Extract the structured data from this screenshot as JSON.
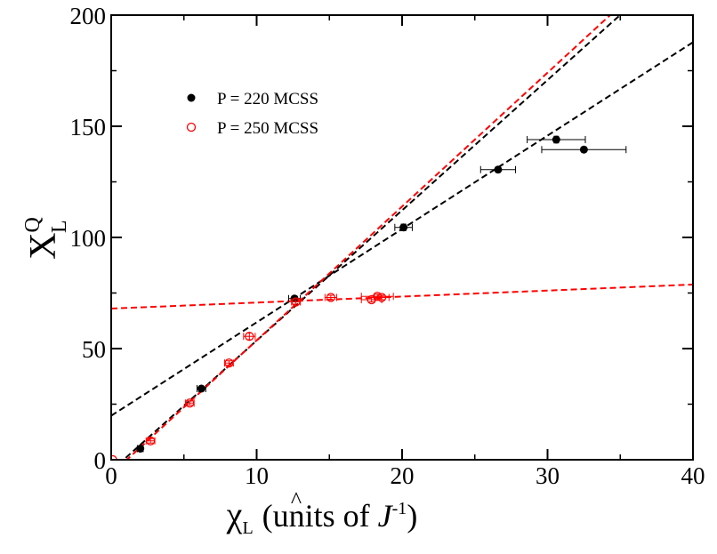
{
  "chart_data": {
    "type": "scatter",
    "xlim": [
      0,
      40
    ],
    "ylim": [
      0,
      200
    ],
    "x_ticks": [
      "0",
      "10",
      "20",
      "30",
      "40"
    ],
    "y_ticks": [
      "0",
      "50",
      "100",
      "150",
      "200"
    ],
    "x_tick_values": [
      0,
      10,
      20,
      30,
      40
    ],
    "y_tick_values": [
      0,
      50,
      100,
      150,
      200
    ],
    "xlabel": {
      "symbol": "χ",
      "hat": "^",
      "subscript": "L",
      "text": "(units of ",
      "unit": "J",
      "superscript": "-1",
      "close": ")"
    },
    "ylabel": {
      "symbol": "X",
      "superscript": "Q",
      "subscript": "L"
    },
    "legend": {
      "position": "top-left",
      "entries": [
        {
          "label": "P = 220 MCSS",
          "marker": "filled-circle",
          "color": "#000000"
        },
        {
          "label": "P = 250 MCSS",
          "marker": "open-circle",
          "color": "#ff0000"
        }
      ]
    },
    "series": [
      {
        "name": "P = 220 MCSS",
        "color": "#000000",
        "marker": "filled",
        "points": [
          {
            "x": 2.0,
            "y": 5.0,
            "xerr": 0.2,
            "yerr": 1.0
          },
          {
            "x": 6.2,
            "y": 32.0,
            "xerr": 0.3,
            "yerr": 1.0
          },
          {
            "x": 12.6,
            "y": 72.5,
            "xerr": 0.4,
            "yerr": 1.0
          },
          {
            "x": 20.1,
            "y": 104.5,
            "xerr": 0.6,
            "yerr": 1.5
          },
          {
            "x": 26.6,
            "y": 130.5,
            "xerr": 1.2,
            "yerr": 1.2
          },
          {
            "x": 30.6,
            "y": 144.0,
            "xerr": 2.0,
            "yerr": 1.5
          },
          {
            "x": 32.5,
            "y": 139.5,
            "xerr": 2.9,
            "yerr": 1.2
          }
        ],
        "fits": [
          {
            "x0": 0,
            "x1": 40,
            "slope": 4.2,
            "intercept": 19.8
          },
          {
            "x0": 0,
            "x1": 40,
            "slope": 5.86,
            "intercept": -5.0
          }
        ]
      },
      {
        "name": "P = 250 MCSS",
        "color": "#ff0000",
        "marker": "open",
        "points": [
          {
            "x": 0.1,
            "y": 0.0,
            "xerr": 0.0,
            "yerr": 0.0
          },
          {
            "x": 2.7,
            "y": 8.5,
            "xerr": 0.3,
            "yerr": 1.0
          },
          {
            "x": 5.4,
            "y": 25.5,
            "xerr": 0.3,
            "yerr": 1.0
          },
          {
            "x": 8.1,
            "y": 43.5,
            "xerr": 0.3,
            "yerr": 1.0
          },
          {
            "x": 9.5,
            "y": 55.5,
            "xerr": 0.4,
            "yerr": 1.5
          },
          {
            "x": 12.7,
            "y": 71.0,
            "xerr": 0.3,
            "yerr": 1.0
          },
          {
            "x": 15.1,
            "y": 73.0,
            "xerr": 0.4,
            "yerr": 1.0
          },
          {
            "x": 17.9,
            "y": 72.0,
            "xerr": 0.7,
            "yerr": 1.0
          },
          {
            "x": 18.3,
            "y": 73.5,
            "xerr": 1.1,
            "yerr": 1.0
          },
          {
            "x": 18.6,
            "y": 73.0,
            "xerr": 0.5,
            "yerr": 1.0
          }
        ],
        "fits": [
          {
            "x0": 0,
            "x1": 40,
            "slope": 6.02,
            "intercept": -6.5
          },
          {
            "x0": 0,
            "x1": 40,
            "slope": 0.27,
            "intercept": 68.0
          }
        ]
      }
    ]
  }
}
